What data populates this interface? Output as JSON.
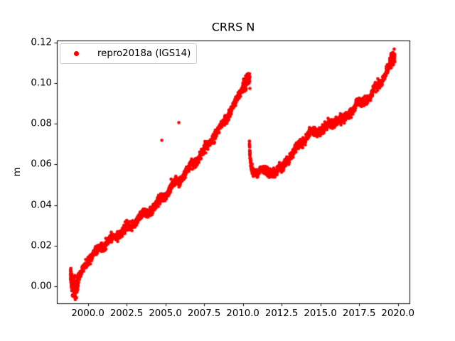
{
  "chart_data": {
    "type": "scatter",
    "title": "CRRS N",
    "xlabel": "",
    "ylabel": "m",
    "legend": {
      "label": "repro2018a (IGS14)",
      "location": "upper left",
      "marker": "dot"
    },
    "marker": {
      "color": "#ff0000",
      "radius_px": 2.3
    },
    "axis": {
      "xlim": [
        1998.0,
        2020.75
      ],
      "ylim": [
        -0.0084,
        0.1209
      ],
      "xticks": [
        2000.0,
        2002.5,
        2005.0,
        2007.5,
        2010.0,
        2012.5,
        2015.0,
        2017.5,
        2020.0
      ],
      "xtick_labels": [
        "2000.0",
        "2002.5",
        "2005.0",
        "2007.5",
        "2010.0",
        "2012.5",
        "2015.0",
        "2017.5",
        "2020.0"
      ],
      "yticks": [
        0.0,
        0.02,
        0.04,
        0.06,
        0.08,
        0.1,
        0.12
      ],
      "ytick_labels": [
        "0.00",
        "0.02",
        "0.04",
        "0.06",
        "0.08",
        "0.10",
        "0.12"
      ],
      "grid": false
    },
    "series": [
      {
        "name": "repro2018a (IGS14)",
        "color": "#ff0000",
        "segments": [
          {
            "kind": "anchors",
            "step": 0.00909,
            "noise": 0.0011,
            "seasonal": 0.001,
            "anchors": [
              [
                1998.88,
                0.0075
              ],
              [
                1998.93,
                0.0035
              ],
              [
                1999.0,
                0.0008
              ],
              [
                1999.1,
                -0.0005
              ],
              [
                1999.22,
                -0.0005
              ],
              [
                1999.35,
                0.0018
              ],
              [
                1999.5,
                0.0045
              ],
              [
                1999.65,
                0.0075
              ],
              [
                1999.85,
                0.0108
              ],
              [
                2000.05,
                0.0135
              ],
              [
                2000.3,
                0.015
              ],
              [
                2000.6,
                0.0168
              ],
              [
                2000.9,
                0.0198
              ],
              [
                2001.2,
                0.0218
              ],
              [
                2001.5,
                0.0235
              ],
              [
                2001.8,
                0.0248
              ],
              [
                2002.1,
                0.0262
              ],
              [
                2002.35,
                0.0278
              ],
              [
                2002.7,
                0.029
              ],
              [
                2003.0,
                0.0312
              ],
              [
                2003.3,
                0.034
              ],
              [
                2003.6,
                0.035
              ],
              [
                2003.9,
                0.0365
              ],
              [
                2004.2,
                0.0385
              ],
              [
                2004.5,
                0.0412
              ],
              [
                2004.8,
                0.043
              ],
              [
                2005.0,
                0.0448
              ],
              [
                2005.3,
                0.0475
              ],
              [
                2005.6,
                0.05
              ],
              [
                2005.9,
                0.0518
              ],
              [
                2006.2,
                0.055
              ],
              [
                2006.5,
                0.058
              ],
              [
                2006.8,
                0.06
              ],
              [
                2007.1,
                0.0628
              ],
              [
                2007.4,
                0.066
              ],
              [
                2007.7,
                0.0685
              ],
              [
                2008.0,
                0.0727
              ],
              [
                2008.3,
                0.0755
              ],
              [
                2008.6,
                0.0785
              ],
              [
                2008.9,
                0.0825
              ],
              [
                2009.2,
                0.0865
              ],
              [
                2009.5,
                0.09
              ],
              [
                2009.8,
                0.0945
              ],
              [
                2010.05,
                0.099
              ],
              [
                2010.25,
                0.101
              ],
              [
                2010.45,
                0.102
              ]
            ]
          },
          {
            "kind": "exp_decay",
            "t0": 2010.42,
            "t1": 2010.75,
            "base": 0.0555,
            "amp": 0.015,
            "tau": 0.08,
            "step": 0.0027,
            "noise": 0.0009
          },
          {
            "kind": "anchors",
            "step": 0.00909,
            "noise": 0.0011,
            "seasonal": 0.001,
            "anchors": [
              [
                2010.75,
                0.0557
              ],
              [
                2011.0,
                0.0565
              ],
              [
                2011.15,
                0.0593
              ],
              [
                2011.35,
                0.0565
              ],
              [
                2011.6,
                0.0548
              ],
              [
                2011.85,
                0.0556
              ],
              [
                2012.1,
                0.0566
              ],
              [
                2012.35,
                0.0585
              ],
              [
                2012.55,
                0.0575
              ],
              [
                2012.8,
                0.0618
              ],
              [
                2013.1,
                0.065
              ],
              [
                2013.4,
                0.0672
              ],
              [
                2013.7,
                0.07
              ],
              [
                2013.95,
                0.0718
              ],
              [
                2014.3,
                0.076
              ],
              [
                2014.7,
                0.0748
              ],
              [
                2015.1,
                0.0778
              ],
              [
                2015.45,
                0.079
              ],
              [
                2015.8,
                0.0798
              ],
              [
                2016.2,
                0.0827
              ],
              [
                2016.6,
                0.0818
              ],
              [
                2017.0,
                0.0862
              ],
              [
                2017.35,
                0.0905
              ],
              [
                2017.7,
                0.0892
              ],
              [
                2018.1,
                0.0928
              ],
              [
                2018.5,
                0.0966
              ],
              [
                2018.9,
                0.1002
              ],
              [
                2019.2,
                0.1048
              ],
              [
                2019.45,
                0.1082
              ],
              [
                2019.65,
                0.112
              ],
              [
                2019.8,
                0.1128
              ]
            ]
          }
        ],
        "dense_clusters": [
          {
            "segment": 0,
            "t0": 1998.88,
            "t1": 1999.4,
            "count": 180,
            "sigma": 0.0021
          },
          {
            "segment": 0,
            "t0": 2010.0,
            "t1": 2010.45,
            "count": 130,
            "sigma": 0.0016
          },
          {
            "segment": 2,
            "t0": 2019.5,
            "t1": 2019.8,
            "count": 70,
            "sigma": 0.0016
          }
        ],
        "outliers": [
          [
            2004.77,
            0.0718
          ],
          [
            2005.87,
            0.0805
          ],
          [
            2005.37,
            0.0527
          ],
          [
            2010.45,
            0.0973
          ]
        ]
      }
    ]
  }
}
